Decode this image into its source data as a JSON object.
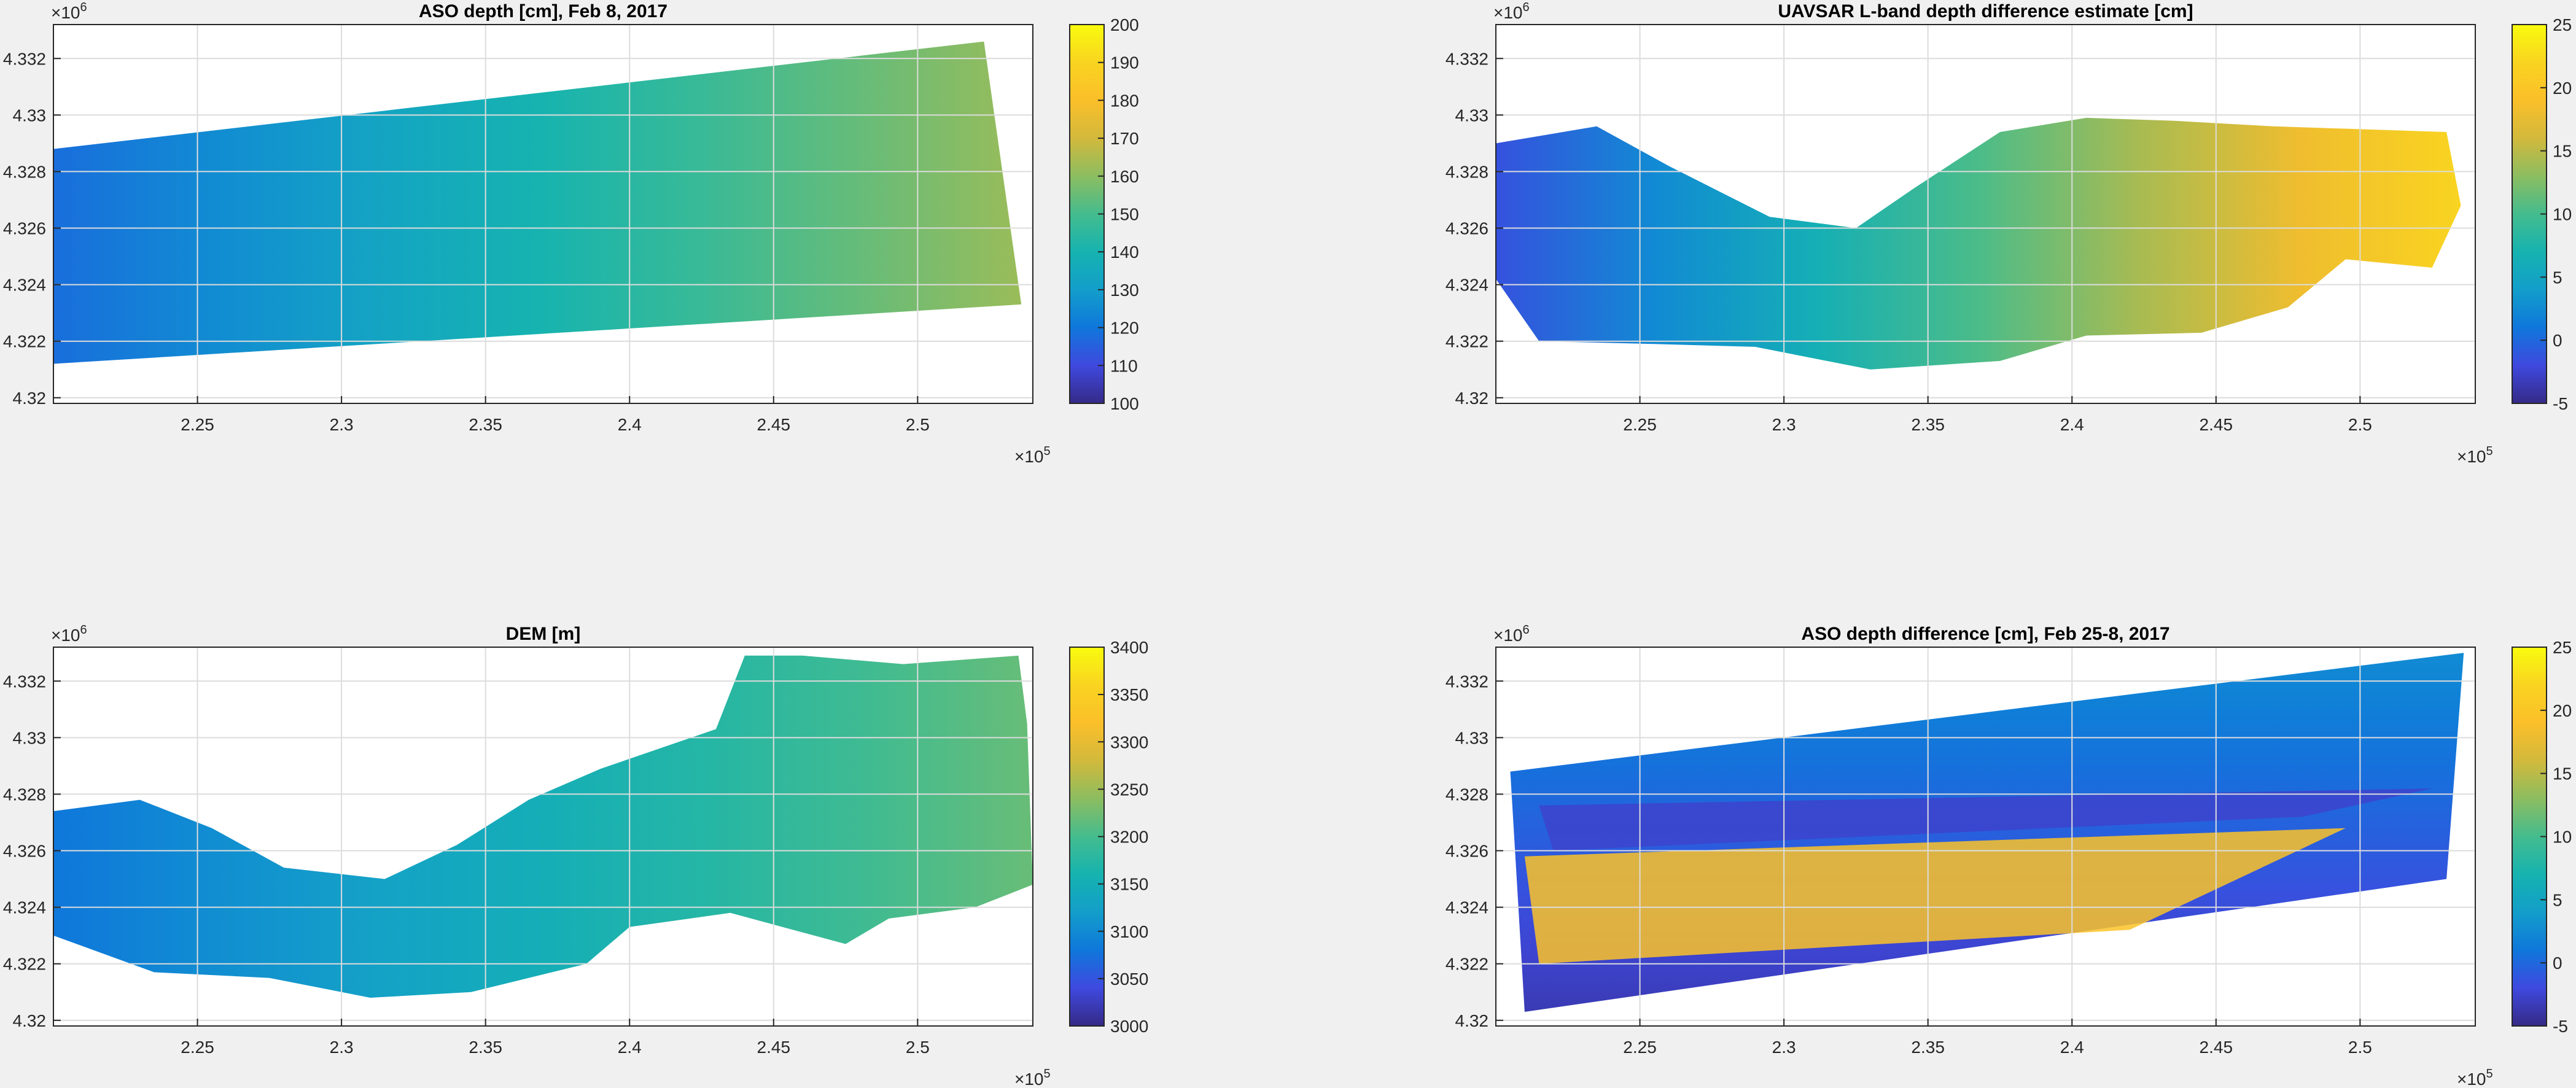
{
  "colormap": {
    "name": "parula",
    "stops": [
      "#352a87",
      "#3f49df",
      "#0f77db",
      "#139eca",
      "#16b3b0",
      "#44bc8e",
      "#8cbd60",
      "#d2b93c",
      "#fbbf2a",
      "#f9d420",
      "#f9fb0e"
    ],
    "nan_color": "#ffffff"
  },
  "figure": {
    "background": "#f0f0f0"
  },
  "chart_data": [
    {
      "type": "heatmap",
      "title": "ASO depth [cm], Feb 8, 2017",
      "x_ticks": [
        2.25,
        2.3,
        2.35,
        2.4,
        2.45,
        2.5
      ],
      "x_multiplier": "10",
      "x_exponent": "5",
      "xlim": [
        220000,
        254000
      ],
      "y_ticks": [
        4.32,
        4.322,
        4.324,
        4.326,
        4.328,
        4.33,
        4.332
      ],
      "y_multiplier": "10",
      "y_exponent": "6",
      "ylim": [
        4319800,
        4333200
      ],
      "colorbar": {
        "ticks": [
          100,
          110,
          120,
          130,
          140,
          150,
          160,
          170,
          180,
          190,
          200
        ],
        "clim": [
          100,
          200
        ]
      },
      "grid": true,
      "field": {
        "shape": "band",
        "corners": [
          [
            220000,
            4321200
          ],
          [
            253600,
            4323300
          ],
          [
            252300,
            4332600
          ],
          [
            220000,
            4328800
          ]
        ],
        "gradient": [
          {
            "dir": "x",
            "from": 0.18,
            "to": 0.62
          },
          {
            "dir": "y",
            "from": 0.0,
            "to": 0.18
          }
        ]
      }
    },
    {
      "type": "heatmap",
      "title": "UAVSAR L-band depth difference estimate [cm]",
      "x_ticks": [
        2.25,
        2.3,
        2.35,
        2.4,
        2.45,
        2.5
      ],
      "x_multiplier": "10",
      "x_exponent": "5",
      "xlim": [
        220000,
        254000
      ],
      "y_ticks": [
        4.32,
        4.322,
        4.324,
        4.326,
        4.328,
        4.33,
        4.332
      ],
      "y_multiplier": "10",
      "y_exponent": "6",
      "ylim": [
        4319800,
        4333200
      ],
      "colorbar": {
        "ticks": [
          -5,
          0,
          5,
          10,
          15,
          20,
          25
        ],
        "clim": [
          -5,
          25
        ]
      },
      "grid": true,
      "field": {
        "shape": "valley",
        "outline": [
          [
            220000,
            4329000
          ],
          [
            223500,
            4329600
          ],
          [
            226000,
            4328200
          ],
          [
            229500,
            4326400
          ],
          [
            232500,
            4326000
          ],
          [
            234500,
            4327400
          ],
          [
            237500,
            4329400
          ],
          [
            240500,
            4329900
          ],
          [
            243500,
            4329800
          ],
          [
            247000,
            4329600
          ],
          [
            253000,
            4329400
          ],
          [
            253500,
            4326800
          ],
          [
            252500,
            4324600
          ],
          [
            249500,
            4324900
          ],
          [
            247500,
            4323200
          ],
          [
            244500,
            4322300
          ],
          [
            240500,
            4322200
          ],
          [
            237500,
            4321300
          ],
          [
            233000,
            4321000
          ],
          [
            229000,
            4321800
          ],
          [
            225500,
            4321900
          ],
          [
            221500,
            4322000
          ],
          [
            220000,
            4324200
          ]
        ],
        "gradient": [
          {
            "dir": "x",
            "from": 0.12,
            "to": 0.9
          }
        ]
      }
    },
    {
      "type": "heatmap",
      "title": "DEM [m]",
      "x_ticks": [
        2.25,
        2.3,
        2.35,
        2.4,
        2.45,
        2.5
      ],
      "x_multiplier": "10",
      "x_exponent": "5",
      "xlim": [
        220000,
        254000
      ],
      "y_ticks": [
        4.32,
        4.322,
        4.324,
        4.326,
        4.328,
        4.33,
        4.332
      ],
      "y_multiplier": "10",
      "y_exponent": "6",
      "ylim": [
        4319800,
        4333200
      ],
      "colorbar": {
        "ticks": [
          3000,
          3050,
          3100,
          3150,
          3200,
          3250,
          3300,
          3350,
          3400
        ],
        "clim": [
          3000,
          3400
        ]
      },
      "grid": true,
      "field": {
        "shape": "valley",
        "outline": [
          [
            220000,
            4327400
          ],
          [
            223000,
            4327800
          ],
          [
            225500,
            4326800
          ],
          [
            228000,
            4325400
          ],
          [
            231500,
            4325000
          ],
          [
            234000,
            4326200
          ],
          [
            236500,
            4327800
          ],
          [
            239000,
            4328900
          ],
          [
            243000,
            4330300
          ],
          [
            244000,
            4332900
          ],
          [
            246000,
            4332900
          ],
          [
            249500,
            4332600
          ],
          [
            253500,
            4332900
          ],
          [
            253800,
            4330500
          ],
          [
            254000,
            4324800
          ],
          [
            252000,
            4324000
          ],
          [
            249000,
            4323600
          ],
          [
            247500,
            4322700
          ],
          [
            243500,
            4323800
          ],
          [
            240000,
            4323300
          ],
          [
            238500,
            4322000
          ],
          [
            234500,
            4321000
          ],
          [
            231000,
            4320800
          ],
          [
            227500,
            4321500
          ],
          [
            223500,
            4321700
          ],
          [
            220000,
            4323000
          ]
        ],
        "gradient": [
          {
            "dir": "x",
            "from": 0.2,
            "to": 0.55
          }
        ]
      }
    },
    {
      "type": "heatmap",
      "title": "ASO depth difference [cm], Feb 25-8, 2017",
      "x_ticks": [
        2.25,
        2.3,
        2.35,
        2.4,
        2.45,
        2.5
      ],
      "x_multiplier": "10",
      "x_exponent": "5",
      "xlim": [
        220000,
        254000
      ],
      "y_ticks": [
        4.32,
        4.322,
        4.324,
        4.326,
        4.328,
        4.33,
        4.332
      ],
      "y_multiplier": "10",
      "y_exponent": "6",
      "ylim": [
        4319800,
        4333200
      ],
      "colorbar": {
        "ticks": [
          -5,
          0,
          5,
          10,
          15,
          20,
          25
        ],
        "clim": [
          -5,
          25
        ]
      },
      "grid": true,
      "field": {
        "shape": "band",
        "corners": [
          [
            221000,
            4320300
          ],
          [
            253000,
            4325000
          ],
          [
            253600,
            4333000
          ],
          [
            220500,
            4328800
          ]
        ],
        "bands": [
          {
            "corners": [
              [
                221500,
                4322000
              ],
              [
                242000,
                4323200
              ],
              [
                249500,
                4326800
              ],
              [
                221000,
                4325800
              ]
            ],
            "value": 0.82
          },
          {
            "corners": [
              [
                222000,
                4326000
              ],
              [
                248000,
                4327200
              ],
              [
                252500,
                4328200
              ],
              [
                221500,
                4327600
              ]
            ],
            "value": 0.08
          }
        ],
        "gradient": [
          {
            "dir": "y",
            "from": 0.05,
            "to": 0.25
          }
        ]
      }
    }
  ]
}
